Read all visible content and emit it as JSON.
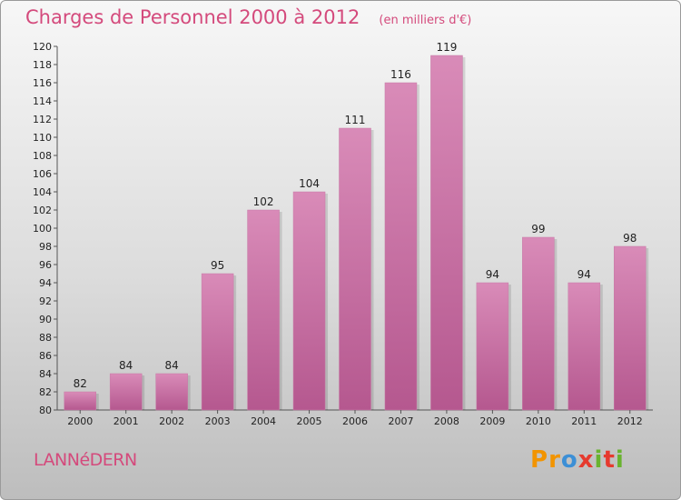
{
  "title": "Charges de Personnel 2000 à 2012",
  "subtitle": "(en milliers d'€)",
  "commune": "LANNéDERN",
  "logo": {
    "text": "Proxiti",
    "colors": [
      "#f29400",
      "#3c8fd6",
      "#e63a2e",
      "#69b32f"
    ]
  },
  "colors": {
    "bar": "#d98bb8",
    "bar_dark": "#b5588f",
    "title": "#d44a7c"
  },
  "chart_data": {
    "type": "bar",
    "title": "Charges de Personnel 2000 à 2012",
    "subtitle": "(en milliers d'€)",
    "categories": [
      "2000",
      "2001",
      "2002",
      "2003",
      "2004",
      "2005",
      "2006",
      "2007",
      "2008",
      "2009",
      "2010",
      "2011",
      "2012"
    ],
    "values": [
      82,
      84,
      84,
      95,
      102,
      104,
      111,
      116,
      119,
      94,
      99,
      94,
      98
    ],
    "ylim": [
      80,
      120
    ],
    "yticks": [
      80,
      82,
      84,
      86,
      88,
      90,
      92,
      94,
      96,
      98,
      100,
      102,
      104,
      106,
      108,
      110,
      112,
      114,
      116,
      118,
      120
    ],
    "grid": false,
    "legend": "none"
  }
}
